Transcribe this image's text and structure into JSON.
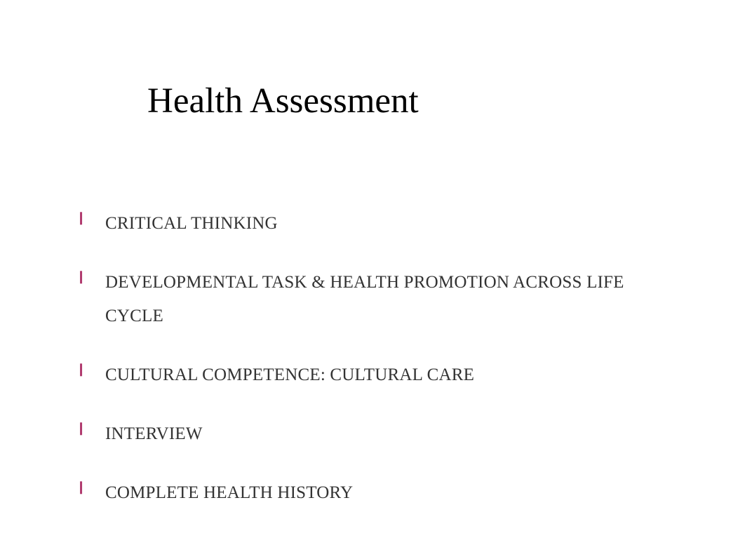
{
  "slide": {
    "title": "Health Assessment",
    "title_fontsize": 51,
    "title_color": "#000000",
    "background_color": "#ffffff",
    "bullet_color": "#b03a6e",
    "bullet_glyph": "❙",
    "item_text_color": "#333333",
    "item_fontsize": 25,
    "item_line_height": 48,
    "items": [
      {
        "text": "CRITICAL THINKING"
      },
      {
        "text": "DEVELOPMENTAL TASK & HEALTH PROMOTION ACROSS LIFE CYCLE"
      },
      {
        "text": "CULTURAL COMPETENCE: CULTURAL CARE"
      },
      {
        "text": "INTERVIEW"
      },
      {
        "text": "COMPLETE HEALTH HISTORY"
      }
    ]
  }
}
